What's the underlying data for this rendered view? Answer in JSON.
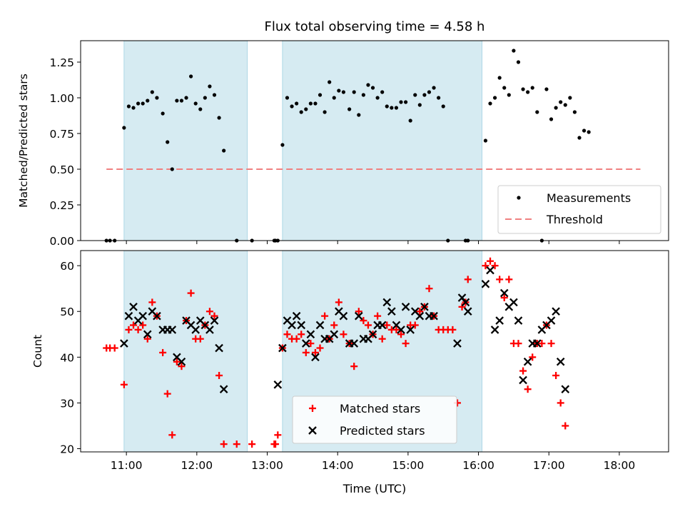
{
  "title": "Flux total observing time = 4.58 h",
  "xlabel": "Time (UTC)",
  "chart_data": [
    {
      "type": "scatter",
      "ylabel": "Matched/Predicted stars",
      "xlim": [
        "10:21",
        "18:42"
      ],
      "ylim": [
        0,
        1.4
      ],
      "yticks": [
        "0.00",
        "0.25",
        "0.50",
        "0.75",
        "1.00",
        "1.25"
      ],
      "shaded_intervals": [
        [
          "10:58",
          "12:43"
        ],
        [
          "13:13",
          "16:03"
        ]
      ],
      "threshold": {
        "y": 0.5,
        "x_range": [
          "10:43",
          "18:18"
        ]
      },
      "legend": [
        "Measurements",
        "Threshold"
      ],
      "legend_position": "lower right",
      "series": [
        {
          "name": "Measurements",
          "points": [
            [
              "10:43",
              0.0
            ],
            [
              "10:46",
              0.0
            ],
            [
              "10:50",
              0.0
            ],
            [
              "10:58",
              0.79
            ],
            [
              "11:02",
              0.94
            ],
            [
              "11:06",
              0.93
            ],
            [
              "11:10",
              0.96
            ],
            [
              "11:14",
              0.96
            ],
            [
              "11:18",
              0.98
            ],
            [
              "11:22",
              1.04
            ],
            [
              "11:26",
              1.0
            ],
            [
              "11:31",
              0.89
            ],
            [
              "11:35",
              0.69
            ],
            [
              "11:39",
              0.5
            ],
            [
              "11:43",
              0.98
            ],
            [
              "11:47",
              0.98
            ],
            [
              "11:51",
              1.0
            ],
            [
              "11:55",
              1.15
            ],
            [
              "11:59",
              0.96
            ],
            [
              "12:03",
              0.92
            ],
            [
              "12:07",
              1.0
            ],
            [
              "12:11",
              1.08
            ],
            [
              "12:15",
              1.02
            ],
            [
              "12:19",
              0.86
            ],
            [
              "12:23",
              0.63
            ],
            [
              "12:34",
              0.0
            ],
            [
              "12:47",
              0.0
            ],
            [
              "13:06",
              0.0
            ],
            [
              "13:07",
              0.0
            ],
            [
              "13:09",
              0.0
            ],
            [
              "13:13",
              0.67
            ],
            [
              "13:17",
              1.0
            ],
            [
              "13:21",
              0.94
            ],
            [
              "13:25",
              0.96
            ],
            [
              "13:29",
              0.9
            ],
            [
              "13:33",
              0.92
            ],
            [
              "13:37",
              0.96
            ],
            [
              "13:41",
              0.96
            ],
            [
              "13:45",
              1.02
            ],
            [
              "13:49",
              0.9
            ],
            [
              "13:53",
              1.11
            ],
            [
              "13:57",
              1.0
            ],
            [
              "14:01",
              1.05
            ],
            [
              "14:05",
              1.04
            ],
            [
              "14:10",
              0.92
            ],
            [
              "14:14",
              1.04
            ],
            [
              "14:18",
              0.88
            ],
            [
              "14:22",
              1.02
            ],
            [
              "14:26",
              1.09
            ],
            [
              "14:30",
              1.07
            ],
            [
              "14:34",
              1.0
            ],
            [
              "14:38",
              1.04
            ],
            [
              "14:42",
              0.94
            ],
            [
              "14:46",
              0.93
            ],
            [
              "14:50",
              0.93
            ],
            [
              "14:54",
              0.97
            ],
            [
              "14:58",
              0.97
            ],
            [
              "15:02",
              0.84
            ],
            [
              "15:06",
              1.02
            ],
            [
              "15:10",
              0.95
            ],
            [
              "15:14",
              1.02
            ],
            [
              "15:18",
              1.04
            ],
            [
              "15:22",
              1.07
            ],
            [
              "15:26",
              1.0
            ],
            [
              "15:30",
              0.94
            ],
            [
              "15:34",
              0.0
            ],
            [
              "15:49",
              0.0
            ],
            [
              "15:51",
              0.0
            ],
            [
              "16:06",
              0.7
            ],
            [
              "16:10",
              0.96
            ],
            [
              "16:14",
              1.0
            ],
            [
              "16:18",
              1.14
            ],
            [
              "16:22",
              1.07
            ],
            [
              "16:26",
              1.02
            ],
            [
              "16:30",
              1.33
            ],
            [
              "16:34",
              1.25
            ],
            [
              "16:38",
              1.06
            ],
            [
              "16:42",
              1.04
            ],
            [
              "16:46",
              1.07
            ],
            [
              "16:50",
              0.9
            ],
            [
              "16:54",
              0.0
            ],
            [
              "16:58",
              1.06
            ],
            [
              "17:02",
              0.85
            ],
            [
              "17:06",
              0.93
            ],
            [
              "17:10",
              0.97
            ],
            [
              "17:14",
              0.95
            ],
            [
              "17:18",
              1.0
            ],
            [
              "17:22",
              0.9
            ],
            [
              "17:26",
              0.72
            ],
            [
              "17:30",
              0.77
            ],
            [
              "17:34",
              0.76
            ]
          ]
        }
      ]
    },
    {
      "type": "scatter",
      "ylabel": "Count",
      "xlim": [
        "10:21",
        "18:42"
      ],
      "ylim": [
        19.3,
        63.3
      ],
      "yticks": [
        "20",
        "30",
        "40",
        "50",
        "60"
      ],
      "xticks": [
        "11:00",
        "12:00",
        "13:00",
        "14:00",
        "15:00",
        "16:00",
        "17:00",
        "18:00"
      ],
      "shaded_intervals": [
        [
          "10:58",
          "12:43"
        ],
        [
          "13:13",
          "16:03"
        ]
      ],
      "legend": [
        "Matched stars",
        "Predicted stars"
      ],
      "legend_position": "lower center",
      "series": [
        {
          "name": "Matched stars",
          "points": [
            [
              "10:43",
              42
            ],
            [
              "10:46",
              42
            ],
            [
              "10:50",
              42
            ],
            [
              "10:58",
              34
            ],
            [
              "11:02",
              46
            ],
            [
              "11:06",
              47
            ],
            [
              "11:10",
              46
            ],
            [
              "11:14",
              47
            ],
            [
              "11:18",
              44
            ],
            [
              "11:22",
              52
            ],
            [
              "11:26",
              49
            ],
            [
              "11:31",
              41
            ],
            [
              "11:35",
              32
            ],
            [
              "11:39",
              23
            ],
            [
              "11:43",
              39
            ],
            [
              "11:47",
              38
            ],
            [
              "11:51",
              48
            ],
            [
              "11:55",
              54
            ],
            [
              "11:59",
              44
            ],
            [
              "12:03",
              44
            ],
            [
              "12:07",
              47
            ],
            [
              "12:11",
              50
            ],
            [
              "12:15",
              49
            ],
            [
              "12:19",
              36
            ],
            [
              "12:23",
              21
            ],
            [
              "12:34",
              21
            ],
            [
              "12:47",
              21
            ],
            [
              "13:06",
              21
            ],
            [
              "13:07",
              21
            ],
            [
              "13:09",
              23
            ],
            [
              "13:13",
              42
            ],
            [
              "13:17",
              45
            ],
            [
              "13:21",
              44
            ],
            [
              "13:25",
              44
            ],
            [
              "13:29",
              45
            ],
            [
              "13:33",
              41
            ],
            [
              "13:37",
              43
            ],
            [
              "13:41",
              41
            ],
            [
              "13:45",
              42
            ],
            [
              "13:49",
              49
            ],
            [
              "13:53",
              44
            ],
            [
              "13:57",
              47
            ],
            [
              "14:01",
              52
            ],
            [
              "14:05",
              45
            ],
            [
              "14:10",
              43
            ],
            [
              "14:14",
              38
            ],
            [
              "14:18",
              50
            ],
            [
              "14:22",
              48
            ],
            [
              "14:26",
              47
            ],
            [
              "14:30",
              45
            ],
            [
              "14:34",
              49
            ],
            [
              "14:38",
              44
            ],
            [
              "14:42",
              47
            ],
            [
              "14:46",
              46
            ],
            [
              "14:50",
              46
            ],
            [
              "14:54",
              45
            ],
            [
              "14:58",
              43
            ],
            [
              "15:02",
              47
            ],
            [
              "15:06",
              47
            ],
            [
              "15:10",
              50
            ],
            [
              "15:14",
              51
            ],
            [
              "15:18",
              55
            ],
            [
              "15:22",
              49
            ],
            [
              "15:26",
              46
            ],
            [
              "15:30",
              46
            ],
            [
              "15:34",
              46
            ],
            [
              "15:38",
              46
            ],
            [
              "15:42",
              30
            ],
            [
              "15:46",
              51
            ],
            [
              "15:49",
              52
            ],
            [
              "15:51",
              57
            ],
            [
              "16:06",
              60
            ],
            [
              "16:10",
              61
            ],
            [
              "16:14",
              60
            ],
            [
              "16:18",
              57
            ],
            [
              "16:22",
              53
            ],
            [
              "16:26",
              57
            ],
            [
              "16:30",
              43
            ],
            [
              "16:34",
              43
            ],
            [
              "16:38",
              37
            ],
            [
              "16:42",
              33
            ],
            [
              "16:46",
              40
            ],
            [
              "16:50",
              43
            ],
            [
              "16:54",
              43
            ],
            [
              "16:58",
              47
            ],
            [
              "17:02",
              43
            ],
            [
              "17:06",
              36
            ],
            [
              "17:10",
              30
            ],
            [
              "17:14",
              25
            ]
          ]
        },
        {
          "name": "Predicted stars",
          "points": [
            [
              "10:58",
              43
            ],
            [
              "11:02",
              49
            ],
            [
              "11:06",
              51
            ],
            [
              "11:10",
              48
            ],
            [
              "11:14",
              49
            ],
            [
              "11:18",
              45
            ],
            [
              "11:22",
              50
            ],
            [
              "11:26",
              49
            ],
            [
              "11:31",
              46
            ],
            [
              "11:35",
              46
            ],
            [
              "11:39",
              46
            ],
            [
              "11:43",
              40
            ],
            [
              "11:47",
              39
            ],
            [
              "11:51",
              48
            ],
            [
              "11:55",
              47
            ],
            [
              "11:59",
              46
            ],
            [
              "12:03",
              48
            ],
            [
              "12:07",
              47
            ],
            [
              "12:11",
              46
            ],
            [
              "12:15",
              48
            ],
            [
              "12:19",
              42
            ],
            [
              "12:23",
              33
            ],
            [
              "13:09",
              34
            ],
            [
              "13:13",
              42
            ],
            [
              "13:17",
              48
            ],
            [
              "13:21",
              47
            ],
            [
              "13:25",
              49
            ],
            [
              "13:29",
              47
            ],
            [
              "13:33",
              43
            ],
            [
              "13:37",
              45
            ],
            [
              "13:41",
              40
            ],
            [
              "13:45",
              47
            ],
            [
              "13:49",
              44
            ],
            [
              "13:53",
              44
            ],
            [
              "13:57",
              45
            ],
            [
              "14:01",
              50
            ],
            [
              "14:05",
              49
            ],
            [
              "14:10",
              43
            ],
            [
              "14:14",
              43
            ],
            [
              "14:18",
              49
            ],
            [
              "14:22",
              44
            ],
            [
              "14:26",
              44
            ],
            [
              "14:30",
              45
            ],
            [
              "14:34",
              47
            ],
            [
              "14:38",
              47
            ],
            [
              "14:42",
              52
            ],
            [
              "14:46",
              50
            ],
            [
              "14:50",
              47
            ],
            [
              "14:54",
              46
            ],
            [
              "14:58",
              51
            ],
            [
              "15:02",
              46
            ],
            [
              "15:06",
              50
            ],
            [
              "15:10",
              49
            ],
            [
              "15:14",
              51
            ],
            [
              "15:18",
              49
            ],
            [
              "15:22",
              49
            ],
            [
              "15:42",
              43
            ],
            [
              "15:46",
              53
            ],
            [
              "15:49",
              52
            ],
            [
              "15:51",
              50
            ],
            [
              "16:06",
              56
            ],
            [
              "16:10",
              59
            ],
            [
              "16:14",
              46
            ],
            [
              "16:18",
              48
            ],
            [
              "16:22",
              54
            ],
            [
              "16:26",
              51
            ],
            [
              "16:30",
              52
            ],
            [
              "16:34",
              48
            ],
            [
              "16:38",
              35
            ],
            [
              "16:42",
              39
            ],
            [
              "16:46",
              43
            ],
            [
              "16:50",
              43
            ],
            [
              "16:54",
              46
            ],
            [
              "16:58",
              47
            ],
            [
              "17:02",
              48
            ],
            [
              "17:06",
              50
            ],
            [
              "17:10",
              39
            ],
            [
              "17:14",
              33
            ]
          ]
        }
      ]
    }
  ]
}
